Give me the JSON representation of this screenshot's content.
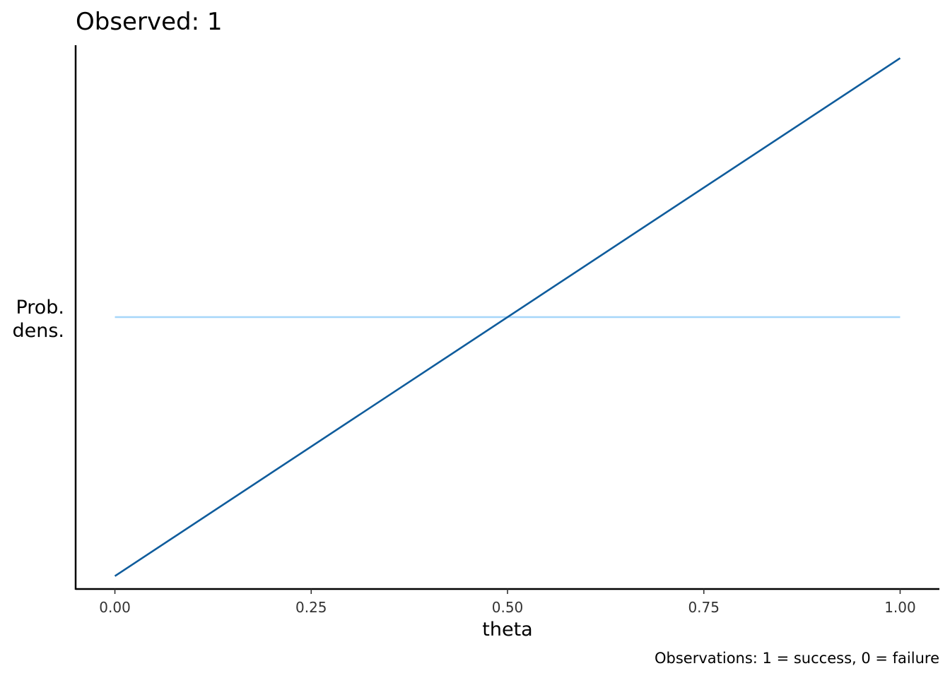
{
  "chart_data": {
    "type": "line",
    "title": "Observed:  1",
    "xlabel": "theta",
    "ylabel_lines": [
      "Prob.",
      "dens."
    ],
    "caption": "Observations: 1 = success, 0 = failure",
    "xlim": [
      -0.05,
      1.05
    ],
    "ylim": [
      -0.05,
      2.05
    ],
    "x_ticks": [
      0,
      0.25,
      0.5,
      0.75,
      1
    ],
    "x_tick_labels": [
      "0.00",
      "0.25",
      "0.50",
      "0.75",
      "1.00"
    ],
    "y_ticks_shown": false,
    "grid": false,
    "series": [
      {
        "color": "#a6d6fa",
        "x": [
          0,
          1
        ],
        "y": [
          1,
          1
        ]
      },
      {
        "color": "#0f5c9c",
        "x": [
          0,
          1
        ],
        "y": [
          0,
          2
        ]
      }
    ]
  }
}
